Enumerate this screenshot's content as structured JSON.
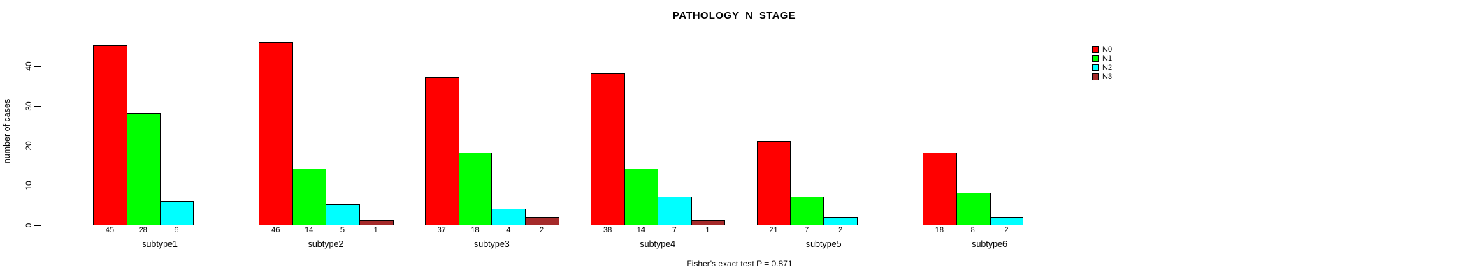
{
  "title": "PATHOLOGY_N_STAGE",
  "ylabel": "number of cases",
  "annotation": "Fisher's exact test P = 0.871",
  "legend": {
    "position": "right",
    "items": [
      {
        "label": "N0",
        "color": "#ff0000"
      },
      {
        "label": "N1",
        "color": "#00ff00"
      },
      {
        "label": "N2",
        "color": "#00ffff"
      },
      {
        "label": "N3",
        "color": "#a52a2a"
      }
    ]
  },
  "chart_data": {
    "type": "bar",
    "title": "PATHOLOGY_N_STAGE",
    "xlabel": "",
    "ylabel": "number of cases",
    "categories": [
      "subtype1",
      "subtype2",
      "subtype3",
      "subtype4",
      "subtype5",
      "subtype6"
    ],
    "series": [
      {
        "name": "N0",
        "color": "#ff0000",
        "values": [
          45,
          46,
          37,
          38,
          21,
          18
        ]
      },
      {
        "name": "N1",
        "color": "#00ff00",
        "values": [
          28,
          14,
          18,
          14,
          7,
          8
        ]
      },
      {
        "name": "N2",
        "color": "#00ffff",
        "values": [
          6,
          5,
          4,
          7,
          2,
          2
        ]
      },
      {
        "name": "N3",
        "color": "#a52a2a",
        "values": [
          0,
          1,
          2,
          1,
          0,
          0
        ]
      }
    ],
    "bar_value_labels_shown": true,
    "zero_bars_hidden": true,
    "yticks": [
      0,
      10,
      20,
      30,
      40
    ],
    "ylim": [
      0,
      46
    ],
    "grid": false,
    "legend_position": "right",
    "annotation": "Fisher's exact test P = 0.871"
  }
}
